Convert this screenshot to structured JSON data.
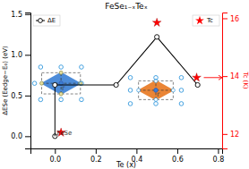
{
  "chart_data": {
    "type": "scatter",
    "title": "FeSe₁₋ₓTeₓ",
    "x_label": "Te (x)",
    "y_label": "ΔESe (Eedge−E₀) (eV)",
    "y2_label": "Tc (K)",
    "xlim": [
      -0.12,
      0.82
    ],
    "xticks": [
      {
        "value": 0.0,
        "label": "0.0"
      },
      0.2,
      0.4,
      0.6,
      0.8
    ],
    "ylim": [
      -0.15,
      1.52
    ],
    "yticks": [
      {
        "value": 0.0,
        "label": "0.0"
      },
      0.5,
      {
        "value": 1.0,
        "label": "1.0"
      },
      1.5
    ],
    "y2lim": [
      11.5,
      16.2
    ],
    "y2ticks": [
      12,
      14,
      16
    ],
    "grid": false,
    "series": [
      {
        "name": "ΔE",
        "type": "line",
        "marker": "circle",
        "color": "black",
        "legend": "upper left",
        "x": [
          0.0,
          0.3,
          0.5,
          0.7
        ],
        "values": [
          0.63,
          0.63,
          1.22,
          0.63
        ]
      },
      {
        "type": "scatter",
        "marker": "circle",
        "color": "black",
        "x": [
          0.0
        ],
        "values": [
          0.0
        ]
      },
      {
        "type": "scatter",
        "marker": "open-circle",
        "color": "#3399dd",
        "x": [
          -0.07,
          0.03,
          0.13,
          -0.1,
          0.13,
          -0.07,
          0.03,
          0.13
        ],
        "values": [
          0.85,
          0.85,
          0.85,
          0.65,
          0.65,
          0.45,
          0.45,
          0.45
        ]
      },
      {
        "type": "scatter",
        "marker": "open-circle",
        "color": "#3399dd",
        "x": [
          0.37,
          0.495,
          0.62,
          0.37,
          0.62,
          0.37,
          0.495,
          0.62
        ],
        "values": [
          0.72,
          0.72,
          0.72,
          0.565,
          0.565,
          0.4,
          0.4,
          0.4
        ]
      },
      {
        "name": "Tc",
        "type": "scatter",
        "marker": "star",
        "color": "red",
        "axis": "y2",
        "legend": "upper right",
        "x": [
          0.03,
          0.5,
          0.695
        ],
        "values": [
          12.05,
          15.85,
          13.95
        ]
      }
    ],
    "structures": [
      {
        "cx": 0.03,
        "cy": 0.65,
        "hw": 0.095,
        "hh": 0.13,
        "diamond_x": 0.1,
        "diamond_y": 0.14,
        "color": "#3a7fd5",
        "marker": "circle"
      },
      {
        "cx": 0.495,
        "cy": 0.565,
        "hw": 0.085,
        "hh": 0.115,
        "diamond_x": 0.09,
        "diamond_y": 0.125,
        "color": "#e87820",
        "marker": "open-circle"
      }
    ],
    "annotations": [
      {
        "text": "FeSe",
        "x": 0.01,
        "y": 0.02
      },
      {
        "text": "Γ",
        "x": 0.035,
        "y": 0.585
      },
      {
        "text": "Γ",
        "x": 0.5,
        "y": 0.5075
      }
    ],
    "arrows": [
      {
        "x": 0.73,
        "x_end": 0.82,
        "y": 13.95,
        "axis": "y2",
        "color": "red"
      }
    ]
  }
}
